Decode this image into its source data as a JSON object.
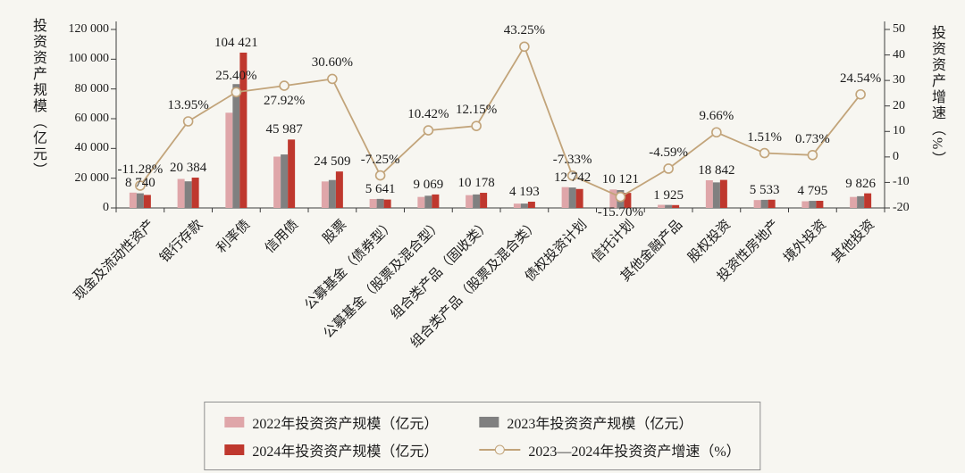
{
  "chart_data": {
    "type": "bar+line",
    "title": "",
    "categories": [
      "现金及流动性资产",
      "银行存款",
      "利率债",
      "信用债",
      "股票",
      "公募基金（债券型）",
      "公募基金（股票及混合型）",
      "组合类产品（固收类）",
      "组合类产品（股票及混合类）",
      "债权投资计划",
      "信托计划",
      "其他金融产品",
      "股权投资",
      "投资性房地产",
      "境外投资",
      "其他投资"
    ],
    "bar_series": [
      {
        "name": "2022年投资资产规模（亿元）",
        "color": "#dfa6a9",
        "values": [
          10300,
          19500,
          64000,
          34500,
          17800,
          6000,
          7400,
          8600,
          2900,
          14000,
          12400,
          2100,
          18600,
          5300,
          4500,
          7400
        ]
      },
      {
        "name": "2023年投资资产规模（亿元）",
        "color": "#808080",
        "values": [
          9850,
          17890,
          83270,
          35950,
          18770,
          6080,
          8210,
          9075,
          2930,
          13750,
          12010,
          2020,
          17180,
          5450,
          4760,
          7890
        ]
      },
      {
        "name": "2024年投资资产规模（亿元）",
        "color": "#bf382e",
        "values": [
          8740,
          20384,
          104421,
          45987,
          24509,
          5641,
          9069,
          10178,
          4193,
          12742,
          10121,
          1925,
          18842,
          5533,
          4795,
          9826
        ],
        "labels": [
          "8 740",
          "20 384",
          "104 421",
          "45 987",
          "24 509",
          "5 641",
          "9 069",
          "10 178",
          "4 193",
          "12 742",
          "10 121",
          "1 925",
          "18 842",
          "5 533",
          "4 795",
          "9 826"
        ]
      }
    ],
    "line_series": {
      "name": "2023—2024年投资资产增速（%）",
      "color": "#c2a47a",
      "marker_fill": "#f7f6f1",
      "values": [
        -11.28,
        13.95,
        25.4,
        27.92,
        30.6,
        -7.25,
        10.42,
        12.15,
        43.25,
        -7.33,
        -15.7,
        -4.59,
        9.66,
        1.51,
        0.73,
        24.54
      ],
      "labels": [
        "-11.28%",
        "13.95%",
        "25.40%",
        "27.92%",
        "30.60%",
        "-7.25%",
        "10.42%",
        "12.15%",
        "43.25%",
        "-7.33%",
        "-15.70%",
        "-4.59%",
        "9.66%",
        "1.51%",
        "0.73%",
        "24.54%"
      ]
    },
    "left_axis": {
      "title": "投资资产规模（亿元）",
      "min": 0,
      "max": 120000,
      "tick_step": 20000,
      "tick_labels": [
        "0",
        "20 000",
        "40 000",
        "60 000",
        "80 000",
        "100 000",
        "120 000"
      ]
    },
    "right_axis": {
      "title": "投资资产增速（%）",
      "min": -20,
      "max": 50,
      "tick_step": 10,
      "tick_labels": [
        "-20",
        "-10",
        "0",
        "10",
        "20",
        "30",
        "40",
        "50"
      ]
    },
    "grid": "off",
    "legend_position": "bottom"
  },
  "legend": {
    "items": [
      {
        "type": "swatch",
        "color": "#dfa6a9",
        "label": "2022年投资资产规模（亿元）"
      },
      {
        "type": "swatch",
        "color": "#808080",
        "label": "2023年投资资产规模（亿元）"
      },
      {
        "type": "swatch",
        "color": "#bf382e",
        "label": "2024年投资资产规模（亿元）"
      },
      {
        "type": "line",
        "color": "#c2a47a",
        "label": "2023—2024年投资资产增速（%）"
      }
    ]
  }
}
